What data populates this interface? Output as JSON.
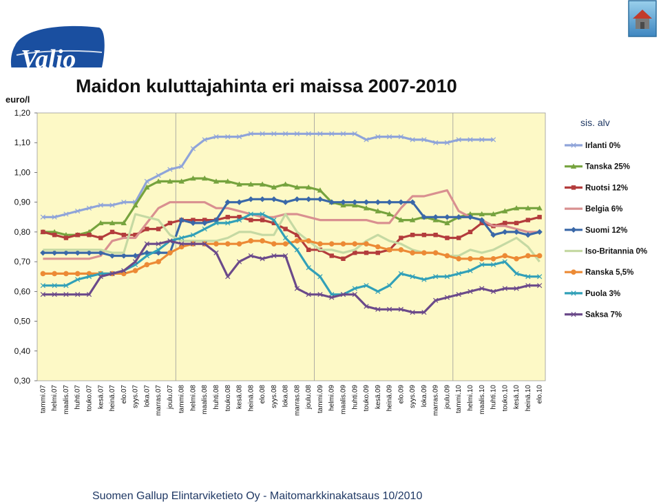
{
  "header": {
    "logo_text": "Valio",
    "home_icon": "home-icon"
  },
  "footer": {
    "text": "Suomen Gallup Elintarviketieto Oy - Maitomarkkinakatsaus 10/2010"
  },
  "chart_data": {
    "type": "line",
    "title": "Maidon kuluttajahinta eri maissa 2007-2010",
    "ylabel": "euro/l",
    "annotation": "sis. alv",
    "ylim": [
      0.3,
      1.2
    ],
    "yticks": [
      "0,30",
      "0,40",
      "0,50",
      "0,60",
      "0,70",
      "0,80",
      "0,90",
      "1,00",
      "1,10",
      "1,20"
    ],
    "grid": "vertical-year-lines",
    "legend_position": "right",
    "categories": [
      "tammi.07",
      "helmi.07",
      "maalis.07",
      "huhti.07",
      "touko.07",
      "kesä.07",
      "heinä.07",
      "elo.07",
      "syys.07",
      "loka.07",
      "marras.07",
      "joulu.07",
      "tammi.08",
      "helmi.08",
      "maalis.08",
      "huhti.08",
      "touko.08",
      "kesä.08",
      "heinä.08",
      "elo.08",
      "syys.08",
      "loka.08",
      "marras.08",
      "joulu.08",
      "tammi.09",
      "helmi.09",
      "maalis.09",
      "huhti.09",
      "touko.09",
      "kesä.09",
      "heinä.09",
      "elo.09",
      "syys.09",
      "loka.09",
      "marras.09",
      "joulu.09",
      "tammi.10",
      "helmi.10",
      "maalis.10",
      "huhti.10",
      "touko.10",
      "kesä.10",
      "heinä.10",
      "elo.10"
    ],
    "series": [
      {
        "name": "Irlanti 0%",
        "color": "#8fa4d9",
        "marker": "cross",
        "values": [
          0.85,
          0.85,
          0.86,
          0.87,
          0.88,
          0.89,
          0.89,
          0.9,
          0.9,
          0.97,
          0.99,
          1.01,
          1.02,
          1.08,
          1.11,
          1.12,
          1.12,
          1.12,
          1.13,
          1.13,
          1.13,
          1.13,
          1.13,
          1.13,
          1.13,
          1.13,
          1.13,
          1.13,
          1.11,
          1.12,
          1.12,
          1.12,
          1.11,
          1.11,
          1.1,
          1.1,
          1.11,
          1.11,
          1.11,
          1.11,
          null,
          null,
          null,
          null
        ]
      },
      {
        "name": "Tanska 25%",
        "color": "#76a33e",
        "marker": "triangle",
        "values": [
          0.8,
          0.8,
          0.79,
          0.79,
          0.8,
          0.83,
          0.83,
          0.83,
          0.89,
          0.95,
          0.97,
          0.97,
          0.97,
          0.98,
          0.98,
          0.97,
          0.97,
          0.96,
          0.96,
          0.96,
          0.95,
          0.96,
          0.95,
          0.95,
          0.94,
          0.9,
          0.89,
          0.89,
          0.88,
          0.87,
          0.86,
          0.84,
          0.84,
          0.85,
          0.84,
          0.83,
          0.85,
          0.86,
          0.86,
          0.86,
          0.87,
          0.88,
          0.88,
          0.88
        ]
      },
      {
        "name": "Ruotsi 12%",
        "color": "#b33c3c",
        "marker": "square",
        "values": [
          0.8,
          0.79,
          0.78,
          0.79,
          0.79,
          0.78,
          0.8,
          0.79,
          0.79,
          0.81,
          0.81,
          0.83,
          0.84,
          0.84,
          0.84,
          0.84,
          0.85,
          0.85,
          0.84,
          0.84,
          0.83,
          0.81,
          0.79,
          0.74,
          0.74,
          0.72,
          0.71,
          0.73,
          0.73,
          0.73,
          0.74,
          0.78,
          0.79,
          0.79,
          0.79,
          0.78,
          0.78,
          0.8,
          0.83,
          0.82,
          0.83,
          0.83,
          0.84,
          0.85
        ]
      },
      {
        "name": "Belgia 6%",
        "color": "#d99090",
        "marker": "none",
        "values": [
          0.71,
          0.71,
          0.71,
          0.71,
          0.71,
          0.72,
          0.77,
          0.78,
          0.78,
          0.83,
          0.88,
          0.9,
          0.9,
          0.9,
          0.9,
          0.88,
          0.88,
          0.87,
          0.86,
          0.85,
          0.85,
          0.86,
          0.86,
          0.85,
          0.84,
          0.84,
          0.84,
          0.84,
          0.84,
          0.83,
          0.83,
          0.88,
          0.92,
          0.92,
          0.93,
          0.94,
          0.87,
          0.85,
          0.84,
          0.82,
          0.82,
          0.81,
          0.8,
          0.8
        ]
      },
      {
        "name": "Suomi 12%",
        "color": "#3a68a8",
        "marker": "diamond",
        "values": [
          0.73,
          0.73,
          0.73,
          0.73,
          0.73,
          0.73,
          0.72,
          0.72,
          0.72,
          0.73,
          0.73,
          0.73,
          0.84,
          0.83,
          0.83,
          0.84,
          0.9,
          0.9,
          0.91,
          0.91,
          0.91,
          0.9,
          0.91,
          0.91,
          0.91,
          0.9,
          0.9,
          0.9,
          0.9,
          0.9,
          0.9,
          0.9,
          0.9,
          0.85,
          0.85,
          0.85,
          0.85,
          0.85,
          0.84,
          0.79,
          0.8,
          0.8,
          0.79,
          0.8
        ]
      },
      {
        "name": "Iso-Britannia 0%",
        "color": "#c5d9a3",
        "marker": "none",
        "values": [
          0.74,
          0.74,
          0.74,
          0.74,
          0.74,
          0.74,
          0.73,
          0.73,
          0.86,
          0.85,
          0.84,
          0.79,
          0.77,
          0.77,
          0.77,
          0.77,
          0.78,
          0.8,
          0.8,
          0.79,
          0.79,
          0.86,
          0.8,
          0.77,
          0.74,
          0.74,
          0.73,
          0.74,
          0.77,
          0.79,
          0.77,
          0.76,
          0.74,
          0.73,
          0.73,
          0.72,
          0.72,
          0.74,
          0.73,
          0.74,
          0.76,
          0.78,
          0.75,
          0.7
        ]
      },
      {
        "name": "Ranska 5,5%",
        "color": "#ec8a35",
        "marker": "circle",
        "values": [
          0.66,
          0.66,
          0.66,
          0.66,
          0.66,
          0.66,
          0.66,
          0.66,
          0.67,
          0.69,
          0.7,
          0.73,
          0.75,
          0.76,
          0.76,
          0.76,
          0.76,
          0.76,
          0.77,
          0.77,
          0.76,
          0.76,
          0.77,
          0.77,
          0.76,
          0.76,
          0.76,
          0.76,
          0.76,
          0.75,
          0.74,
          0.74,
          0.73,
          0.73,
          0.73,
          0.72,
          0.71,
          0.71,
          0.71,
          0.71,
          0.72,
          0.71,
          0.72,
          0.72
        ]
      },
      {
        "name": "Puola 3%",
        "color": "#31a0b8",
        "marker": "cross",
        "values": [
          0.62,
          0.62,
          0.62,
          0.64,
          0.65,
          0.66,
          0.66,
          0.67,
          0.69,
          0.72,
          0.74,
          0.77,
          0.78,
          0.79,
          0.81,
          0.83,
          0.83,
          0.84,
          0.86,
          0.86,
          0.84,
          0.78,
          0.74,
          0.68,
          0.65,
          0.59,
          0.59,
          0.61,
          0.62,
          0.6,
          0.62,
          0.66,
          0.65,
          0.64,
          0.65,
          0.65,
          0.66,
          0.67,
          0.69,
          0.69,
          0.7,
          0.66,
          0.65,
          0.65
        ]
      },
      {
        "name": "Saksa 7%",
        "color": "#6b4a8a",
        "marker": "cross",
        "values": [
          0.59,
          0.59,
          0.59,
          0.59,
          0.59,
          0.65,
          0.66,
          0.67,
          0.7,
          0.76,
          0.76,
          0.77,
          0.76,
          0.76,
          0.76,
          0.73,
          0.65,
          0.7,
          0.72,
          0.71,
          0.72,
          0.72,
          0.61,
          0.59,
          0.59,
          0.58,
          0.59,
          0.59,
          0.55,
          0.54,
          0.54,
          0.54,
          0.53,
          0.53,
          0.57,
          0.58,
          0.59,
          0.6,
          0.61,
          0.6,
          0.61,
          0.61,
          0.62,
          0.62
        ]
      }
    ]
  }
}
